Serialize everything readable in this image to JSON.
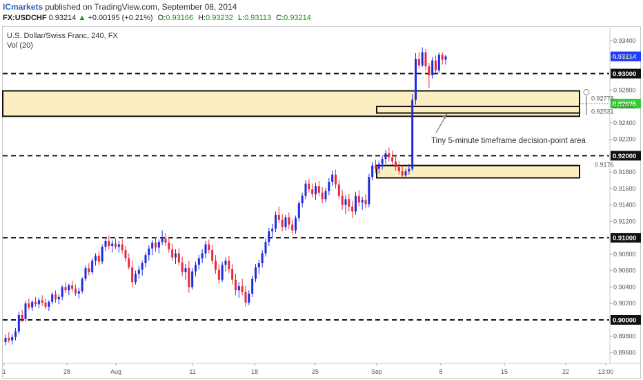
{
  "header": {
    "brand": "ICmarkets",
    "published_text": "published on TradingView.com, September 08, 2014",
    "symbol": "FX:USDCHF",
    "last": "0.93214",
    "change_arrow": "▲",
    "change": "+0.00195 (+0.21%)",
    "o_label": "O:",
    "o_value": "0.93166",
    "h_label": "H:",
    "h_value": "0.93232",
    "l_label": "L:",
    "l_value": "0.93113",
    "c_label": "C:",
    "c_value": "0.93214"
  },
  "chart_data": {
    "type": "candlestick",
    "title": "U.S. Dollar/Swiss Franc, 240, FX",
    "subtitle": "Vol (20)",
    "ylim": [
      0.8952,
      0.9356
    ],
    "y_ticks": [
      "0.93400",
      "0.93200",
      "0.92800",
      "0.92600",
      "0.92400",
      "0.92200",
      "0.91800",
      "0.91600",
      "0.91400",
      "0.91200",
      "0.90800",
      "0.90600",
      "0.90400",
      "0.90200",
      "0.89800",
      "0.89600"
    ],
    "x_ticks": [
      "1",
      "28",
      "Aug",
      "11",
      "18",
      "25",
      "Sep",
      "8",
      "15",
      "22",
      "13:00"
    ],
    "price_label": {
      "value": "0.93214",
      "color": "#1e3cff"
    },
    "horizontal_levels": [
      {
        "value": 0.93,
        "label": "0.93000"
      },
      {
        "value": 0.92,
        "label": "0.92000"
      },
      {
        "value": 0.91,
        "label": "0.91000"
      },
      {
        "value": 0.9,
        "label": "0.90000"
      }
    ],
    "dotted_level": {
      "value": 0.92635,
      "label": "0.92635",
      "color": "#33cc33"
    },
    "zones": [
      {
        "name": "upper-supply-demand-zone",
        "y_top": 0.9279,
        "y_bottom": 0.9248,
        "x_start_category": "1",
        "x_end_category": "22",
        "label_top": "0.92778",
        "label_bottom": "0.92531"
      },
      {
        "name": "tiny-5-minute-zone",
        "y_top": 0.926,
        "y_bottom": 0.9252,
        "x_start_category": "Sep",
        "x_end_category": "22"
      },
      {
        "name": "lower-demand-zone",
        "y_top": 0.9188,
        "y_bottom": 0.9173,
        "x_start_category": "Sep",
        "x_end_category": "22",
        "label_top": "0.9176"
      }
    ],
    "annotation": "Tiny 5-minute timeframe decision-point area",
    "colors": {
      "up": "#1e2be0",
      "down": "#e8283c",
      "zone_fill": "#fdeec2",
      "zone_border": "#111111",
      "level": "#111111",
      "price_box": "#1e3cff",
      "dotted_box": "#33cc33"
    },
    "candles": [
      [
        0.8973,
        0.8982,
        0.8969,
        0.8978
      ],
      [
        0.8978,
        0.8985,
        0.8972,
        0.8975
      ],
      [
        0.8975,
        0.8983,
        0.897,
        0.8979
      ],
      [
        0.8979,
        0.899,
        0.8975,
        0.8986
      ],
      [
        0.8986,
        0.901,
        0.8983,
        0.9006
      ],
      [
        0.9006,
        0.9012,
        0.8997,
        0.9001
      ],
      [
        0.9001,
        0.9023,
        0.8998,
        0.902
      ],
      [
        0.902,
        0.9026,
        0.9012,
        0.9015
      ],
      [
        0.9015,
        0.9024,
        0.9011,
        0.9022
      ],
      [
        0.9022,
        0.9028,
        0.9016,
        0.9019
      ],
      [
        0.9019,
        0.9027,
        0.9014,
        0.9024
      ],
      [
        0.9024,
        0.903,
        0.9017,
        0.9021
      ],
      [
        0.9021,
        0.9026,
        0.9013,
        0.9016
      ],
      [
        0.9016,
        0.9024,
        0.9011,
        0.9022
      ],
      [
        0.9022,
        0.9034,
        0.9019,
        0.9031
      ],
      [
        0.9031,
        0.9036,
        0.9021,
        0.9025
      ],
      [
        0.9025,
        0.9031,
        0.9019,
        0.9028
      ],
      [
        0.9028,
        0.9042,
        0.9024,
        0.904
      ],
      [
        0.904,
        0.9046,
        0.9033,
        0.9036
      ],
      [
        0.9036,
        0.9044,
        0.903,
        0.9042
      ],
      [
        0.9042,
        0.9048,
        0.9034,
        0.9038
      ],
      [
        0.9038,
        0.9043,
        0.9029,
        0.9032
      ],
      [
        0.9032,
        0.9039,
        0.9026,
        0.9035
      ],
      [
        0.9035,
        0.9052,
        0.9032,
        0.905
      ],
      [
        0.905,
        0.9066,
        0.9047,
        0.9063
      ],
      [
        0.9063,
        0.9069,
        0.9054,
        0.9058
      ],
      [
        0.9058,
        0.9075,
        0.9055,
        0.9072
      ],
      [
        0.9072,
        0.9081,
        0.9066,
        0.9078
      ],
      [
        0.9078,
        0.9083,
        0.9067,
        0.9071
      ],
      [
        0.9071,
        0.9092,
        0.9068,
        0.9089
      ],
      [
        0.9089,
        0.9099,
        0.9084,
        0.9096
      ],
      [
        0.9096,
        0.9103,
        0.9086,
        0.909
      ],
      [
        0.909,
        0.9097,
        0.9082,
        0.9093
      ],
      [
        0.9093,
        0.9099,
        0.9086,
        0.9089
      ],
      [
        0.9089,
        0.9096,
        0.9082,
        0.9092
      ],
      [
        0.9092,
        0.9098,
        0.9081,
        0.9085
      ],
      [
        0.9085,
        0.909,
        0.9071,
        0.9075
      ],
      [
        0.9075,
        0.9081,
        0.9061,
        0.9064
      ],
      [
        0.9064,
        0.9072,
        0.904,
        0.9046
      ],
      [
        0.9046,
        0.906,
        0.9043,
        0.9056
      ],
      [
        0.9056,
        0.9066,
        0.905,
        0.9061
      ],
      [
        0.9061,
        0.9072,
        0.9054,
        0.9069
      ],
      [
        0.9069,
        0.9082,
        0.9064,
        0.9079
      ],
      [
        0.9079,
        0.9091,
        0.9072,
        0.9087
      ],
      [
        0.9087,
        0.9097,
        0.9079,
        0.9094
      ],
      [
        0.9094,
        0.9101,
        0.9083,
        0.9088
      ],
      [
        0.9088,
        0.9098,
        0.9081,
        0.9095
      ],
      [
        0.9095,
        0.9109,
        0.9091,
        0.9099
      ],
      [
        0.9099,
        0.9106,
        0.909,
        0.9094
      ],
      [
        0.9094,
        0.9101,
        0.9082,
        0.9086
      ],
      [
        0.9086,
        0.9093,
        0.9072,
        0.9076
      ],
      [
        0.9076,
        0.9086,
        0.9068,
        0.9081
      ],
      [
        0.9081,
        0.9087,
        0.9066,
        0.907
      ],
      [
        0.907,
        0.9077,
        0.9053,
        0.9058
      ],
      [
        0.9058,
        0.9068,
        0.9049,
        0.9063
      ],
      [
        0.9063,
        0.9072,
        0.9033,
        0.904
      ],
      [
        0.904,
        0.9063,
        0.9037,
        0.9059
      ],
      [
        0.9059,
        0.9071,
        0.9053,
        0.9067
      ],
      [
        0.9067,
        0.9079,
        0.9061,
        0.9075
      ],
      [
        0.9075,
        0.9086,
        0.9069,
        0.9081
      ],
      [
        0.9081,
        0.9096,
        0.9075,
        0.9092
      ],
      [
        0.9092,
        0.9098,
        0.9081,
        0.9085
      ],
      [
        0.9085,
        0.9091,
        0.9068,
        0.9072
      ],
      [
        0.9072,
        0.9079,
        0.9056,
        0.9061
      ],
      [
        0.9061,
        0.9068,
        0.9044,
        0.9049
      ],
      [
        0.9049,
        0.9071,
        0.9046,
        0.9067
      ],
      [
        0.9067,
        0.9076,
        0.9059,
        0.9072
      ],
      [
        0.9072,
        0.9078,
        0.9057,
        0.9062
      ],
      [
        0.9062,
        0.9068,
        0.9043,
        0.9049
      ],
      [
        0.9049,
        0.9056,
        0.903,
        0.9036
      ],
      [
        0.9036,
        0.9046,
        0.9027,
        0.9041
      ],
      [
        0.9041,
        0.905,
        0.903,
        0.9034
      ],
      [
        0.9034,
        0.9041,
        0.9016,
        0.9021
      ],
      [
        0.9021,
        0.9036,
        0.9018,
        0.9032
      ],
      [
        0.9032,
        0.9054,
        0.9028,
        0.905
      ],
      [
        0.905,
        0.9068,
        0.9046,
        0.9064
      ],
      [
        0.9064,
        0.9073,
        0.9056,
        0.9069
      ],
      [
        0.9069,
        0.9085,
        0.9064,
        0.9081
      ],
      [
        0.9081,
        0.9099,
        0.9077,
        0.9095
      ],
      [
        0.9095,
        0.9112,
        0.909,
        0.9108
      ],
      [
        0.9108,
        0.9117,
        0.91,
        0.9111
      ],
      [
        0.9111,
        0.9132,
        0.9107,
        0.9128
      ],
      [
        0.9128,
        0.9138,
        0.9118,
        0.9122
      ],
      [
        0.9122,
        0.9129,
        0.9108,
        0.9113
      ],
      [
        0.9113,
        0.9128,
        0.9109,
        0.9125
      ],
      [
        0.9125,
        0.9131,
        0.9111,
        0.9116
      ],
      [
        0.9116,
        0.9122,
        0.9104,
        0.9109
      ],
      [
        0.9109,
        0.9127,
        0.9105,
        0.9124
      ],
      [
        0.9124,
        0.9145,
        0.912,
        0.9142
      ],
      [
        0.9142,
        0.9155,
        0.9137,
        0.9151
      ],
      [
        0.9151,
        0.917,
        0.9147,
        0.9166
      ],
      [
        0.9166,
        0.9172,
        0.9155,
        0.9159
      ],
      [
        0.9159,
        0.9166,
        0.9149,
        0.9153
      ],
      [
        0.9153,
        0.9167,
        0.9146,
        0.9163
      ],
      [
        0.9163,
        0.9169,
        0.9151,
        0.9155
      ],
      [
        0.9155,
        0.9162,
        0.9142,
        0.9147
      ],
      [
        0.9147,
        0.9161,
        0.9143,
        0.9157
      ],
      [
        0.9157,
        0.9173,
        0.9152,
        0.9168
      ],
      [
        0.9168,
        0.9182,
        0.9163,
        0.9177
      ],
      [
        0.9177,
        0.9183,
        0.916,
        0.9165
      ],
      [
        0.9165,
        0.9171,
        0.9147,
        0.9151
      ],
      [
        0.9151,
        0.9158,
        0.9134,
        0.914
      ],
      [
        0.914,
        0.9152,
        0.9129,
        0.9147
      ],
      [
        0.9147,
        0.9153,
        0.9132,
        0.9138
      ],
      [
        0.9138,
        0.9145,
        0.9124,
        0.9132
      ],
      [
        0.9132,
        0.9156,
        0.9128,
        0.9151
      ],
      [
        0.9151,
        0.9158,
        0.9138,
        0.9143
      ],
      [
        0.9143,
        0.915,
        0.9134,
        0.9146
      ],
      [
        0.9146,
        0.9153,
        0.9136,
        0.9141
      ],
      [
        0.9141,
        0.9178,
        0.9137,
        0.9174
      ],
      [
        0.9174,
        0.9192,
        0.917,
        0.9188
      ],
      [
        0.9188,
        0.9195,
        0.9179,
        0.9184
      ],
      [
        0.9184,
        0.9194,
        0.9178,
        0.919
      ],
      [
        0.919,
        0.92,
        0.9183,
        0.9196
      ],
      [
        0.9196,
        0.9207,
        0.919,
        0.9203
      ],
      [
        0.9203,
        0.921,
        0.9193,
        0.9198
      ],
      [
        0.9198,
        0.9206,
        0.9189,
        0.9193
      ],
      [
        0.9193,
        0.9201,
        0.9182,
        0.9186
      ],
      [
        0.9186,
        0.9193,
        0.9177,
        0.9181
      ],
      [
        0.9181,
        0.9188,
        0.9173,
        0.9176
      ],
      [
        0.9176,
        0.9184,
        0.9174,
        0.9181
      ],
      [
        0.9181,
        0.919,
        0.9177,
        0.9184
      ],
      [
        0.9184,
        0.9275,
        0.9181,
        0.9268
      ],
      [
        0.9268,
        0.9325,
        0.9262,
        0.9318
      ],
      [
        0.9318,
        0.9326,
        0.9306,
        0.931
      ],
      [
        0.931,
        0.9332,
        0.9308,
        0.9326
      ],
      [
        0.9326,
        0.933,
        0.9304,
        0.9309
      ],
      [
        0.9309,
        0.9313,
        0.9282,
        0.9298
      ],
      [
        0.9298,
        0.932,
        0.9294,
        0.9316
      ],
      [
        0.9316,
        0.9322,
        0.93,
        0.9304
      ],
      [
        0.9304,
        0.9326,
        0.9301,
        0.9323
      ],
      [
        0.9323,
        0.9326,
        0.9311,
        0.9317
      ],
      [
        0.9317,
        0.9323,
        0.9311,
        0.9321
      ]
    ]
  }
}
